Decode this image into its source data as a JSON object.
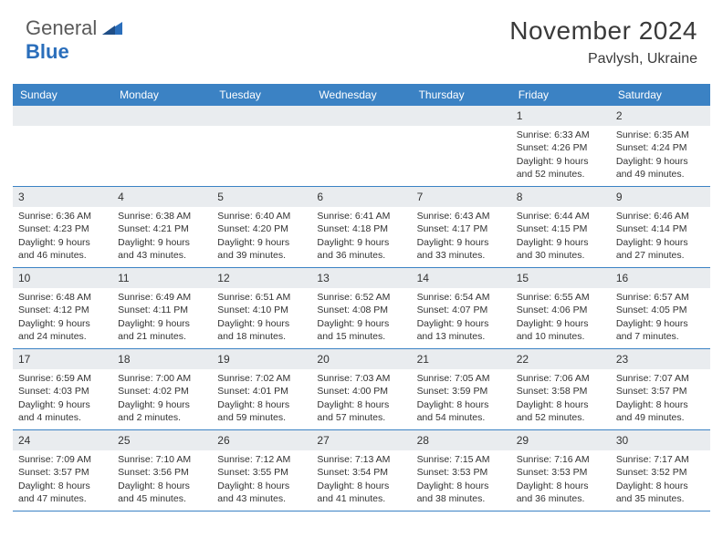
{
  "logo": {
    "part1": "General",
    "part2": "Blue"
  },
  "title": "November 2024",
  "location": "Pavlysh, Ukraine",
  "colors": {
    "header_bg": "#3b82c4",
    "header_text": "#ffffff",
    "daynum_bg": "#e9ecef",
    "text": "#333333",
    "border": "#3b82c4",
    "logo_gray": "#5a5a5a",
    "logo_blue": "#2a6ebb"
  },
  "day_names": [
    "Sunday",
    "Monday",
    "Tuesday",
    "Wednesday",
    "Thursday",
    "Friday",
    "Saturday"
  ],
  "weeks": [
    [
      {
        "n": "",
        "sr": "",
        "ss": "",
        "dl": ""
      },
      {
        "n": "",
        "sr": "",
        "ss": "",
        "dl": ""
      },
      {
        "n": "",
        "sr": "",
        "ss": "",
        "dl": ""
      },
      {
        "n": "",
        "sr": "",
        "ss": "",
        "dl": ""
      },
      {
        "n": "",
        "sr": "",
        "ss": "",
        "dl": ""
      },
      {
        "n": "1",
        "sr": "Sunrise: 6:33 AM",
        "ss": "Sunset: 4:26 PM",
        "dl": "Daylight: 9 hours and 52 minutes."
      },
      {
        "n": "2",
        "sr": "Sunrise: 6:35 AM",
        "ss": "Sunset: 4:24 PM",
        "dl": "Daylight: 9 hours and 49 minutes."
      }
    ],
    [
      {
        "n": "3",
        "sr": "Sunrise: 6:36 AM",
        "ss": "Sunset: 4:23 PM",
        "dl": "Daylight: 9 hours and 46 minutes."
      },
      {
        "n": "4",
        "sr": "Sunrise: 6:38 AM",
        "ss": "Sunset: 4:21 PM",
        "dl": "Daylight: 9 hours and 43 minutes."
      },
      {
        "n": "5",
        "sr": "Sunrise: 6:40 AM",
        "ss": "Sunset: 4:20 PM",
        "dl": "Daylight: 9 hours and 39 minutes."
      },
      {
        "n": "6",
        "sr": "Sunrise: 6:41 AM",
        "ss": "Sunset: 4:18 PM",
        "dl": "Daylight: 9 hours and 36 minutes."
      },
      {
        "n": "7",
        "sr": "Sunrise: 6:43 AM",
        "ss": "Sunset: 4:17 PM",
        "dl": "Daylight: 9 hours and 33 minutes."
      },
      {
        "n": "8",
        "sr": "Sunrise: 6:44 AM",
        "ss": "Sunset: 4:15 PM",
        "dl": "Daylight: 9 hours and 30 minutes."
      },
      {
        "n": "9",
        "sr": "Sunrise: 6:46 AM",
        "ss": "Sunset: 4:14 PM",
        "dl": "Daylight: 9 hours and 27 minutes."
      }
    ],
    [
      {
        "n": "10",
        "sr": "Sunrise: 6:48 AM",
        "ss": "Sunset: 4:12 PM",
        "dl": "Daylight: 9 hours and 24 minutes."
      },
      {
        "n": "11",
        "sr": "Sunrise: 6:49 AM",
        "ss": "Sunset: 4:11 PM",
        "dl": "Daylight: 9 hours and 21 minutes."
      },
      {
        "n": "12",
        "sr": "Sunrise: 6:51 AM",
        "ss": "Sunset: 4:10 PM",
        "dl": "Daylight: 9 hours and 18 minutes."
      },
      {
        "n": "13",
        "sr": "Sunrise: 6:52 AM",
        "ss": "Sunset: 4:08 PM",
        "dl": "Daylight: 9 hours and 15 minutes."
      },
      {
        "n": "14",
        "sr": "Sunrise: 6:54 AM",
        "ss": "Sunset: 4:07 PM",
        "dl": "Daylight: 9 hours and 13 minutes."
      },
      {
        "n": "15",
        "sr": "Sunrise: 6:55 AM",
        "ss": "Sunset: 4:06 PM",
        "dl": "Daylight: 9 hours and 10 minutes."
      },
      {
        "n": "16",
        "sr": "Sunrise: 6:57 AM",
        "ss": "Sunset: 4:05 PM",
        "dl": "Daylight: 9 hours and 7 minutes."
      }
    ],
    [
      {
        "n": "17",
        "sr": "Sunrise: 6:59 AM",
        "ss": "Sunset: 4:03 PM",
        "dl": "Daylight: 9 hours and 4 minutes."
      },
      {
        "n": "18",
        "sr": "Sunrise: 7:00 AM",
        "ss": "Sunset: 4:02 PM",
        "dl": "Daylight: 9 hours and 2 minutes."
      },
      {
        "n": "19",
        "sr": "Sunrise: 7:02 AM",
        "ss": "Sunset: 4:01 PM",
        "dl": "Daylight: 8 hours and 59 minutes."
      },
      {
        "n": "20",
        "sr": "Sunrise: 7:03 AM",
        "ss": "Sunset: 4:00 PM",
        "dl": "Daylight: 8 hours and 57 minutes."
      },
      {
        "n": "21",
        "sr": "Sunrise: 7:05 AM",
        "ss": "Sunset: 3:59 PM",
        "dl": "Daylight: 8 hours and 54 minutes."
      },
      {
        "n": "22",
        "sr": "Sunrise: 7:06 AM",
        "ss": "Sunset: 3:58 PM",
        "dl": "Daylight: 8 hours and 52 minutes."
      },
      {
        "n": "23",
        "sr": "Sunrise: 7:07 AM",
        "ss": "Sunset: 3:57 PM",
        "dl": "Daylight: 8 hours and 49 minutes."
      }
    ],
    [
      {
        "n": "24",
        "sr": "Sunrise: 7:09 AM",
        "ss": "Sunset: 3:57 PM",
        "dl": "Daylight: 8 hours and 47 minutes."
      },
      {
        "n": "25",
        "sr": "Sunrise: 7:10 AM",
        "ss": "Sunset: 3:56 PM",
        "dl": "Daylight: 8 hours and 45 minutes."
      },
      {
        "n": "26",
        "sr": "Sunrise: 7:12 AM",
        "ss": "Sunset: 3:55 PM",
        "dl": "Daylight: 8 hours and 43 minutes."
      },
      {
        "n": "27",
        "sr": "Sunrise: 7:13 AM",
        "ss": "Sunset: 3:54 PM",
        "dl": "Daylight: 8 hours and 41 minutes."
      },
      {
        "n": "28",
        "sr": "Sunrise: 7:15 AM",
        "ss": "Sunset: 3:53 PM",
        "dl": "Daylight: 8 hours and 38 minutes."
      },
      {
        "n": "29",
        "sr": "Sunrise: 7:16 AM",
        "ss": "Sunset: 3:53 PM",
        "dl": "Daylight: 8 hours and 36 minutes."
      },
      {
        "n": "30",
        "sr": "Sunrise: 7:17 AM",
        "ss": "Sunset: 3:52 PM",
        "dl": "Daylight: 8 hours and 35 minutes."
      }
    ]
  ]
}
